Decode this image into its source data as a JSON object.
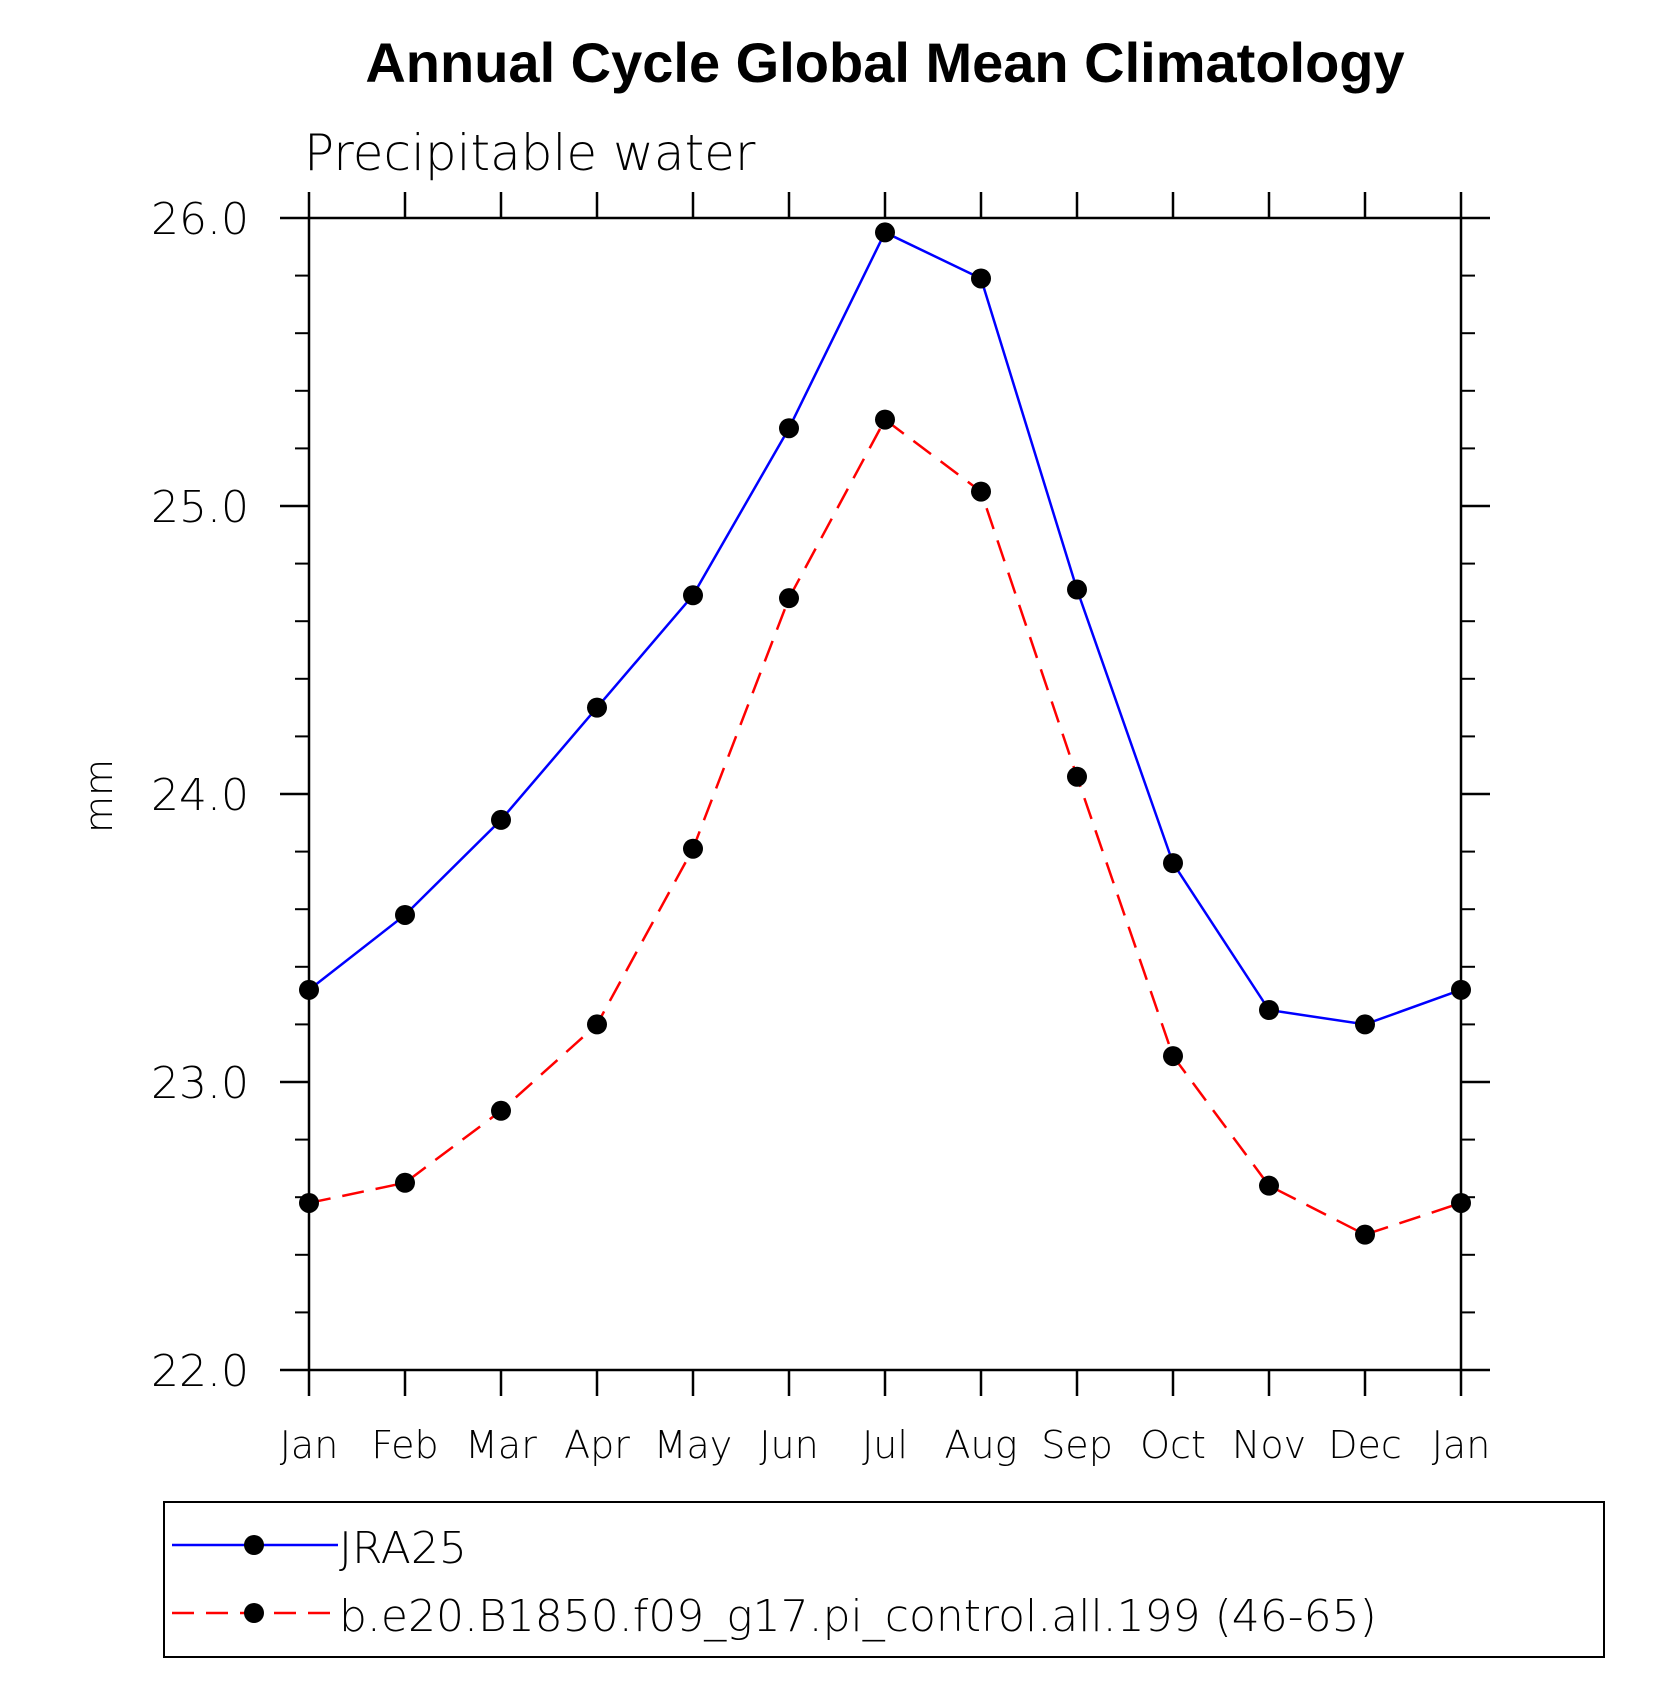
{
  "chart_data": {
    "type": "line",
    "title": "Annual Cycle Global Mean Climatology",
    "subtitle": "Precipitable water",
    "ylabel": "mm",
    "xlabel": "",
    "ylim": [
      22.0,
      26.0
    ],
    "y_tick_labels": [
      "22.0",
      "23.0",
      "24.0",
      "25.0",
      "26.0"
    ],
    "categories": [
      "Jan",
      "Feb",
      "Mar",
      "Apr",
      "May",
      "Jun",
      "Jul",
      "Aug",
      "Sep",
      "Oct",
      "Nov",
      "Dec",
      "Jan"
    ],
    "series": [
      {
        "name": "JRA25",
        "color": "#0000ff",
        "line_style": "solid",
        "marker": "filled-circle",
        "values": [
          23.32,
          23.58,
          23.91,
          24.3,
          24.69,
          25.27,
          25.95,
          25.79,
          24.71,
          23.76,
          23.25,
          23.2,
          23.32
        ]
      },
      {
        "name": "b.e20.B1850.f09_g17.pi_control.all.199 (46-65)",
        "color": "#ff0000",
        "line_style": "dashed",
        "marker": "filled-circle",
        "values": [
          22.58,
          22.65,
          22.9,
          23.2,
          23.81,
          24.68,
          25.3,
          25.05,
          24.06,
          23.09,
          22.64,
          22.47,
          22.58
        ]
      }
    ],
    "grid": false,
    "legend_position": "bottom"
  }
}
